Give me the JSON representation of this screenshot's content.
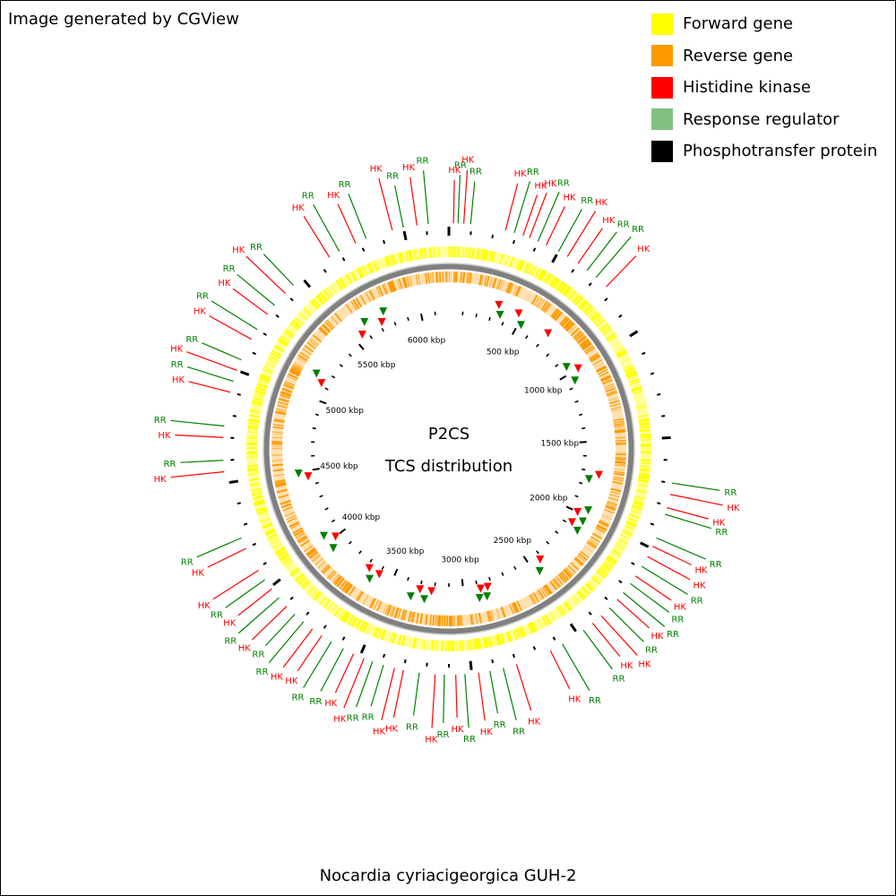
{
  "credit": "Image generated by CGView",
  "legend": [
    {
      "label": "Forward gene",
      "color": "#ffff00"
    },
    {
      "label": "Reverse gene",
      "color": "#ff9900"
    },
    {
      "label": "Histidine kinase",
      "color": "#ff0000"
    },
    {
      "label": "Response regulator",
      "color": "#80c080"
    },
    {
      "label": "Phosphotransfer protein",
      "color": "#000000"
    }
  ],
  "center": {
    "line1": "P2CS",
    "line2": "TCS distribution"
  },
  "genome_name": "Nocardia cyriacigeorgica GUH-2",
  "colors": {
    "backbone": "#808080",
    "hk_label": "#ff0000",
    "rr_label": "#008000",
    "hk_marker": "#ff0000",
    "rr_marker": "#008000"
  },
  "genome_length_kbp": 6200,
  "tick_labels": [
    "500 kbp",
    "1000 kbp",
    "1500 kbp",
    "2000 kbp",
    "2500 kbp",
    "3000 kbp",
    "3500 kbp",
    "4000 kbp",
    "4500 kbp",
    "5000 kbp",
    "5500 kbp",
    "6000 kbp"
  ],
  "feature_labels": [
    {
      "kind": "HK",
      "text": "HK",
      "kbp": 20
    },
    {
      "kind": "RR",
      "text": "RR",
      "kbp": 40
    },
    {
      "kind": "HK",
      "text": "HK",
      "kbp": 65
    },
    {
      "kind": "RR",
      "text": "RR",
      "kbp": 95
    },
    {
      "kind": "HK",
      "text": "HK",
      "kbp": 250
    },
    {
      "kind": "RR",
      "text": "RR",
      "kbp": 290
    },
    {
      "kind": "HK",
      "text": "HK",
      "kbp": 330
    },
    {
      "kind": "HK",
      "text": "HK",
      "kbp": 360
    },
    {
      "kind": "RR",
      "text": "RR",
      "kbp": 400
    },
    {
      "kind": "HK",
      "text": "HK",
      "kbp": 440
    },
    {
      "kind": "RR",
      "text": "RR",
      "kbp": 500
    },
    {
      "kind": "HK",
      "text": "HK",
      "kbp": 545
    },
    {
      "kind": "HK",
      "text": "HK",
      "kbp": 600
    },
    {
      "kind": "RR",
      "text": "RR",
      "kbp": 650
    },
    {
      "kind": "RR",
      "text": "RR",
      "kbp": 700
    },
    {
      "kind": "HK",
      "text": "HK",
      "kbp": 760
    },
    {
      "kind": "RR",
      "text": "RR",
      "kbp": 1700
    },
    {
      "kind": "HK",
      "text": "HK",
      "kbp": 1750
    },
    {
      "kind": "HK",
      "text": "HK",
      "kbp": 1810
    },
    {
      "kind": "RR",
      "text": "RR",
      "kbp": 1840
    },
    {
      "kind": "RR",
      "text": "RR",
      "kbp": 1950
    },
    {
      "kind": "HK",
      "text": "HK",
      "kbp": 1990
    },
    {
      "kind": "HK",
      "text": "HK",
      "kbp": 2040
    },
    {
      "kind": "RR",
      "text": "RR",
      "kbp": 2090
    },
    {
      "kind": "HK",
      "text": "HK",
      "kbp": 2140
    },
    {
      "kind": "RR",
      "text": "RR",
      "kbp": 2180
    },
    {
      "kind": "RR",
      "text": "RR",
      "kbp": 2230
    },
    {
      "kind": "HK",
      "text": "HK",
      "kbp": 2270
    },
    {
      "kind": "RR",
      "text": "RR",
      "kbp": 2320
    },
    {
      "kind": "HK",
      "text": "HK",
      "kbp": 2370
    },
    {
      "kind": "HK",
      "text": "HK",
      "kbp": 2420
    },
    {
      "kind": "RR",
      "text": "RR",
      "kbp": 2470
    },
    {
      "kind": "RR",
      "text": "RR",
      "kbp": 2580
    },
    {
      "kind": "HK",
      "text": "HK",
      "kbp": 2640
    },
    {
      "kind": "HK",
      "text": "HK",
      "kbp": 2800
    },
    {
      "kind": "RR",
      "text": "RR",
      "kbp": 2860
    },
    {
      "kind": "RR",
      "text": "RR",
      "kbp": 2920
    },
    {
      "kind": "HK",
      "text": "HK",
      "kbp": 2970
    },
    {
      "kind": "RR",
      "text": "RR",
      "kbp": 3030
    },
    {
      "kind": "HK",
      "text": "HK",
      "kbp": 3070
    },
    {
      "kind": "RR",
      "text": "RR",
      "kbp": 3120
    },
    {
      "kind": "HK",
      "text": "HK",
      "kbp": 3160
    },
    {
      "kind": "RR",
      "text": "RR",
      "kbp": 3230
    },
    {
      "kind": "HK",
      "text": "HK",
      "kbp": 3300
    },
    {
      "kind": "HK",
      "text": "HK",
      "kbp": 3340
    },
    {
      "kind": "RR",
      "text": "RR",
      "kbp": 3390
    },
    {
      "kind": "RR",
      "text": "RR",
      "kbp": 3440
    },
    {
      "kind": "HK",
      "text": "HK",
      "kbp": 3480
    },
    {
      "kind": "HK",
      "text": "HK",
      "kbp": 3530
    },
    {
      "kind": "RR",
      "text": "RR",
      "kbp": 3580
    },
    {
      "kind": "RR",
      "text": "RR",
      "kbp": 3640
    },
    {
      "kind": "HK",
      "text": "HK",
      "kbp": 3690
    },
    {
      "kind": "HK",
      "text": "HK",
      "kbp": 3740
    },
    {
      "kind": "RR",
      "text": "RR",
      "kbp": 3790
    },
    {
      "kind": "RR",
      "text": "RR",
      "kbp": 3840
    },
    {
      "kind": "HK",
      "text": "HK",
      "kbp": 3890
    },
    {
      "kind": "RR",
      "text": "RR",
      "kbp": 3940
    },
    {
      "kind": "HK",
      "text": "HK",
      "kbp": 3990
    },
    {
      "kind": "RR",
      "text": "RR",
      "kbp": 4040
    },
    {
      "kind": "HK",
      "text": "HK",
      "kbp": 4090
    },
    {
      "kind": "HK",
      "text": "HK",
      "kbp": 4200
    },
    {
      "kind": "RR",
      "text": "RR",
      "kbp": 4250
    },
    {
      "kind": "HK",
      "text": "HK",
      "kbp": 4550
    },
    {
      "kind": "RR",
      "text": "RR",
      "kbp": 4600
    },
    {
      "kind": "HK",
      "text": "HK",
      "kbp": 4700
    },
    {
      "kind": "RR",
      "text": "RR",
      "kbp": 4750
    },
    {
      "kind": "HK",
      "text": "HK",
      "kbp": 4900
    },
    {
      "kind": "RR",
      "text": "RR",
      "kbp": 4950
    },
    {
      "kind": "HK",
      "text": "HK",
      "kbp": 5000
    },
    {
      "kind": "RR",
      "text": "RR",
      "kbp": 5050
    },
    {
      "kind": "HK",
      "text": "HK",
      "kbp": 5150
    },
    {
      "kind": "RR",
      "text": "RR",
      "kbp": 5200
    },
    {
      "kind": "HK",
      "text": "HK",
      "kbp": 5280
    },
    {
      "kind": "RR",
      "text": "RR",
      "kbp": 5330
    },
    {
      "kind": "HK",
      "text": "HK",
      "kbp": 5400
    },
    {
      "kind": "RR",
      "text": "RR",
      "kbp": 5450
    },
    {
      "kind": "HK",
      "text": "HK",
      "kbp": 5650
    },
    {
      "kind": "RR",
      "text": "RR",
      "kbp": 5700
    },
    {
      "kind": "HK",
      "text": "HK",
      "kbp": 5780
    },
    {
      "kind": "RR",
      "text": "RR",
      "kbp": 5830
    },
    {
      "kind": "HK",
      "text": "HK",
      "kbp": 5950
    },
    {
      "kind": "RR",
      "text": "RR",
      "kbp": 6000
    },
    {
      "kind": "HK",
      "text": "HK",
      "kbp": 6060
    },
    {
      "kind": "RR",
      "text": "RR",
      "kbp": 6110
    }
  ]
}
